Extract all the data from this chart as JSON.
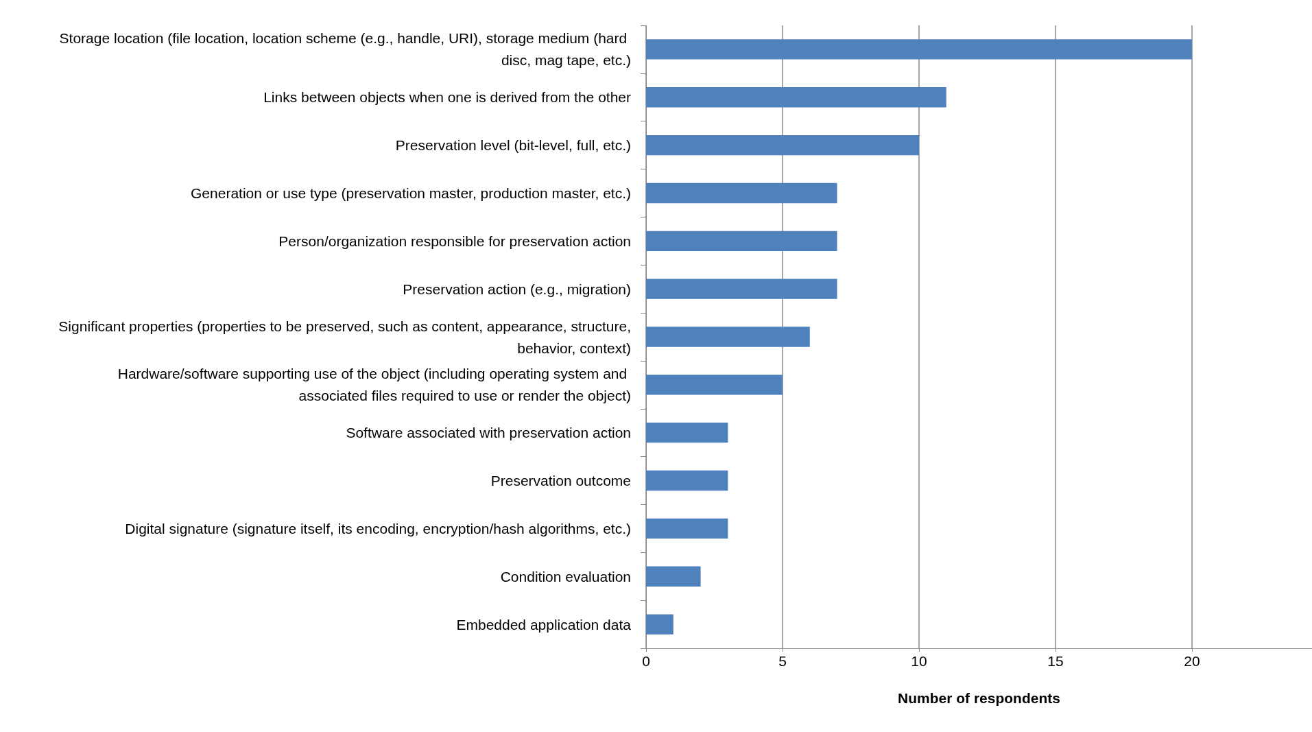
{
  "chart_data": {
    "type": "bar",
    "orientation": "horizontal",
    "xlabel": "Number of respondents",
    "categories": [
      "Storage location (file location, location scheme (e.g., handle, URI), storage medium (hard disc, mag tape, etc.)",
      "Links between objects when one is derived from the other",
      "Preservation level (bit-level, full, etc.)",
      "Generation or use type (preservation master, production master, etc.)",
      "Person/organization responsible for preservation action",
      "Preservation action (e.g., migration)",
      "Significant properties (properties to be preserved, such as content, appearance, structure, behavior, context)",
      "Hardware/software supporting use of the object (including operating system and associated files required to use or render the object)",
      "Software associated with preservation action",
      "Preservation outcome",
      "Digital signature (signature itself, its encoding, encryption/hash algorithms, etc.)",
      "Condition evaluation",
      "Embedded application data"
    ],
    "values": [
      20,
      11,
      10,
      7,
      7,
      7,
      6,
      5,
      3,
      3,
      3,
      2,
      1
    ],
    "color": "#4f81bd",
    "xlim": [
      0,
      24.4
    ],
    "xticks": [
      0,
      5,
      10,
      15,
      20
    ],
    "grid": "x"
  }
}
